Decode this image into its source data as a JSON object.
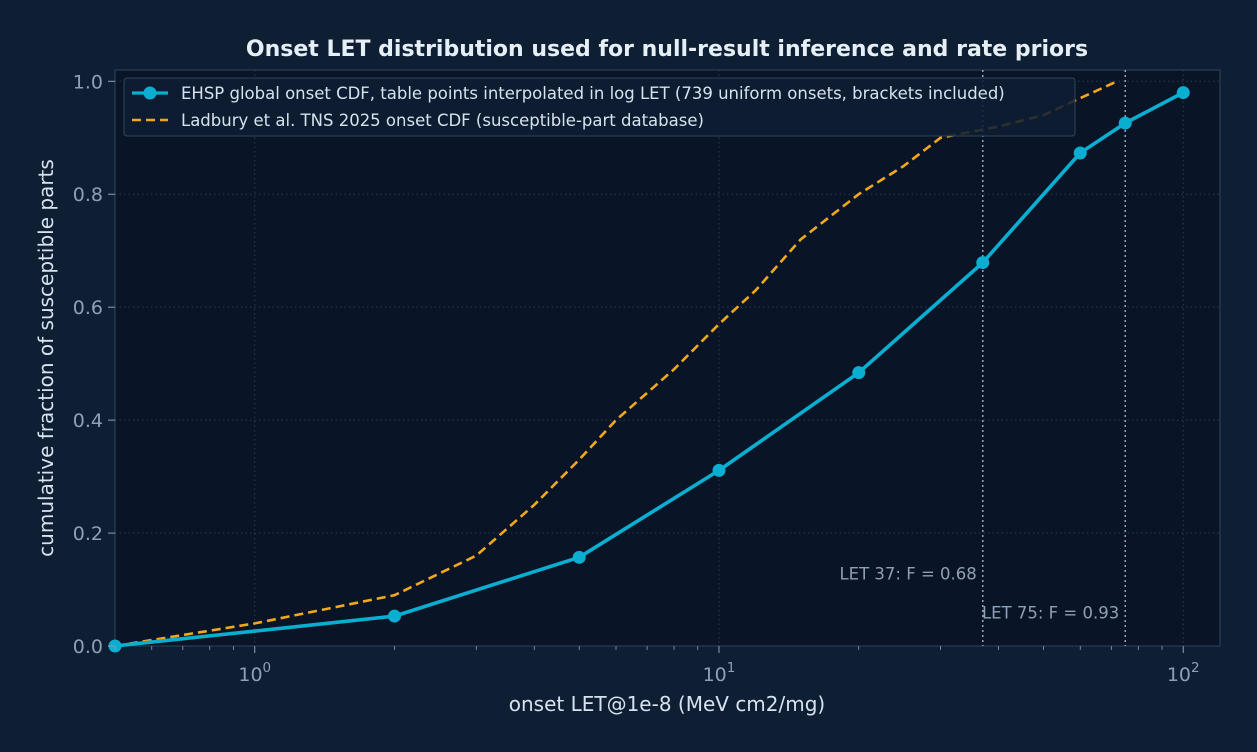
{
  "chart_data": {
    "type": "line",
    "title": "Onset LET distribution used for null-result inference and rate priors",
    "xlabel": "onset LET@1e-8 (MeV cm2/mg)",
    "ylabel": "cumulative fraction of susceptible parts",
    "xscale": "log",
    "xlim": [
      0.5,
      120
    ],
    "ylim": [
      0,
      1.02
    ],
    "x_major_ticks": [
      {
        "value": 1,
        "mantissa": "10",
        "exp": "0"
      },
      {
        "value": 10,
        "mantissa": "10",
        "exp": "1"
      },
      {
        "value": 100,
        "mantissa": "10",
        "exp": "2"
      }
    ],
    "y_ticks": [
      0.0,
      0.2,
      0.4,
      0.6,
      0.8,
      1.0
    ],
    "y_tick_labels": [
      "0.0",
      "0.2",
      "0.4",
      "0.6",
      "0.8",
      "1.0"
    ],
    "grid": true,
    "legend_position": "top-left",
    "series": [
      {
        "name": "EHSP global onset CDF, table points interpolated in log LET (739 uniform onsets, brackets included)",
        "color": "#0aaed0",
        "style": "solid-markers",
        "x": [
          0.5,
          2,
          5,
          10,
          20,
          37,
          60,
          75,
          100
        ],
        "y": [
          0.0,
          0.053,
          0.157,
          0.311,
          0.484,
          0.679,
          0.873,
          0.926,
          0.98
        ]
      },
      {
        "name": "Ladbury et al. TNS 2025 onset CDF (susceptible-part database)",
        "color": "#f2a81d",
        "style": "dashed",
        "x": [
          0.5,
          1,
          2,
          3,
          4,
          5,
          6,
          8,
          10,
          12,
          15,
          20,
          25,
          30,
          40,
          50,
          60,
          72
        ],
        "y": [
          0.0,
          0.04,
          0.09,
          0.16,
          0.25,
          0.33,
          0.4,
          0.49,
          0.57,
          0.63,
          0.72,
          0.8,
          0.85,
          0.9,
          0.92,
          0.94,
          0.97,
          1.0
        ]
      }
    ],
    "reference_lines": [
      {
        "x": 37,
        "label": "LET 37: F = 0.68",
        "label_y": 0.128
      },
      {
        "x": 75,
        "label": "LET 75: F = 0.93",
        "label_y": 0.059
      }
    ]
  },
  "colors": {
    "background": "#0e1e33",
    "plot_background": "#091426",
    "grid": "#2a3b52",
    "axis": "#2f4560",
    "reference_line": "#9fb0c3"
  }
}
